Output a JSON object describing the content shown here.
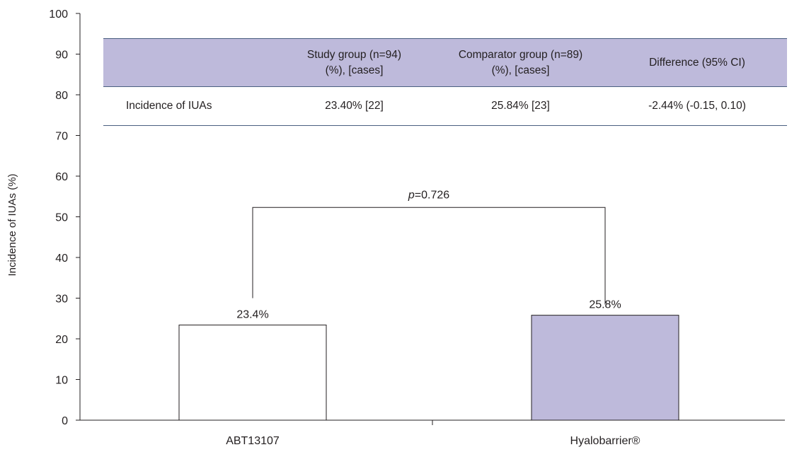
{
  "chart_data": {
    "type": "bar",
    "categories": [
      "ABT13107",
      "Hyalobarrier®"
    ],
    "values": [
      23.4,
      25.8
    ],
    "value_labels": [
      "23.4%",
      "25.8%"
    ],
    "bar_colors": [
      "#ffffff",
      "#bebadb"
    ],
    "ylabel": "Incidence of IUAs (%)",
    "xlabel": "",
    "ylim": [
      0,
      100
    ],
    "yticks": [
      0,
      10,
      20,
      30,
      40,
      50,
      60,
      70,
      80,
      90,
      100
    ],
    "significance": {
      "prefix": "p",
      "text": "=0.726",
      "bracket_top": 52.3,
      "bracket_bottom": 30
    }
  },
  "table": {
    "header_fill": "#bebadb",
    "columns": [
      {
        "line1": "",
        "line2": ""
      },
      {
        "line1": "Study group (n=94)",
        "line2": "(%), [cases]"
      },
      {
        "line1": "Comparator group (n=89)",
        "line2": "(%), [cases]"
      },
      {
        "line1": "Difference (95% CI)",
        "line2": ""
      }
    ],
    "rows": [
      {
        "cells": [
          "Incidence of IUAs",
          "23.40% [22]",
          "25.84% [23]",
          "-2.44% (-0.15, 0.10)"
        ]
      }
    ]
  }
}
